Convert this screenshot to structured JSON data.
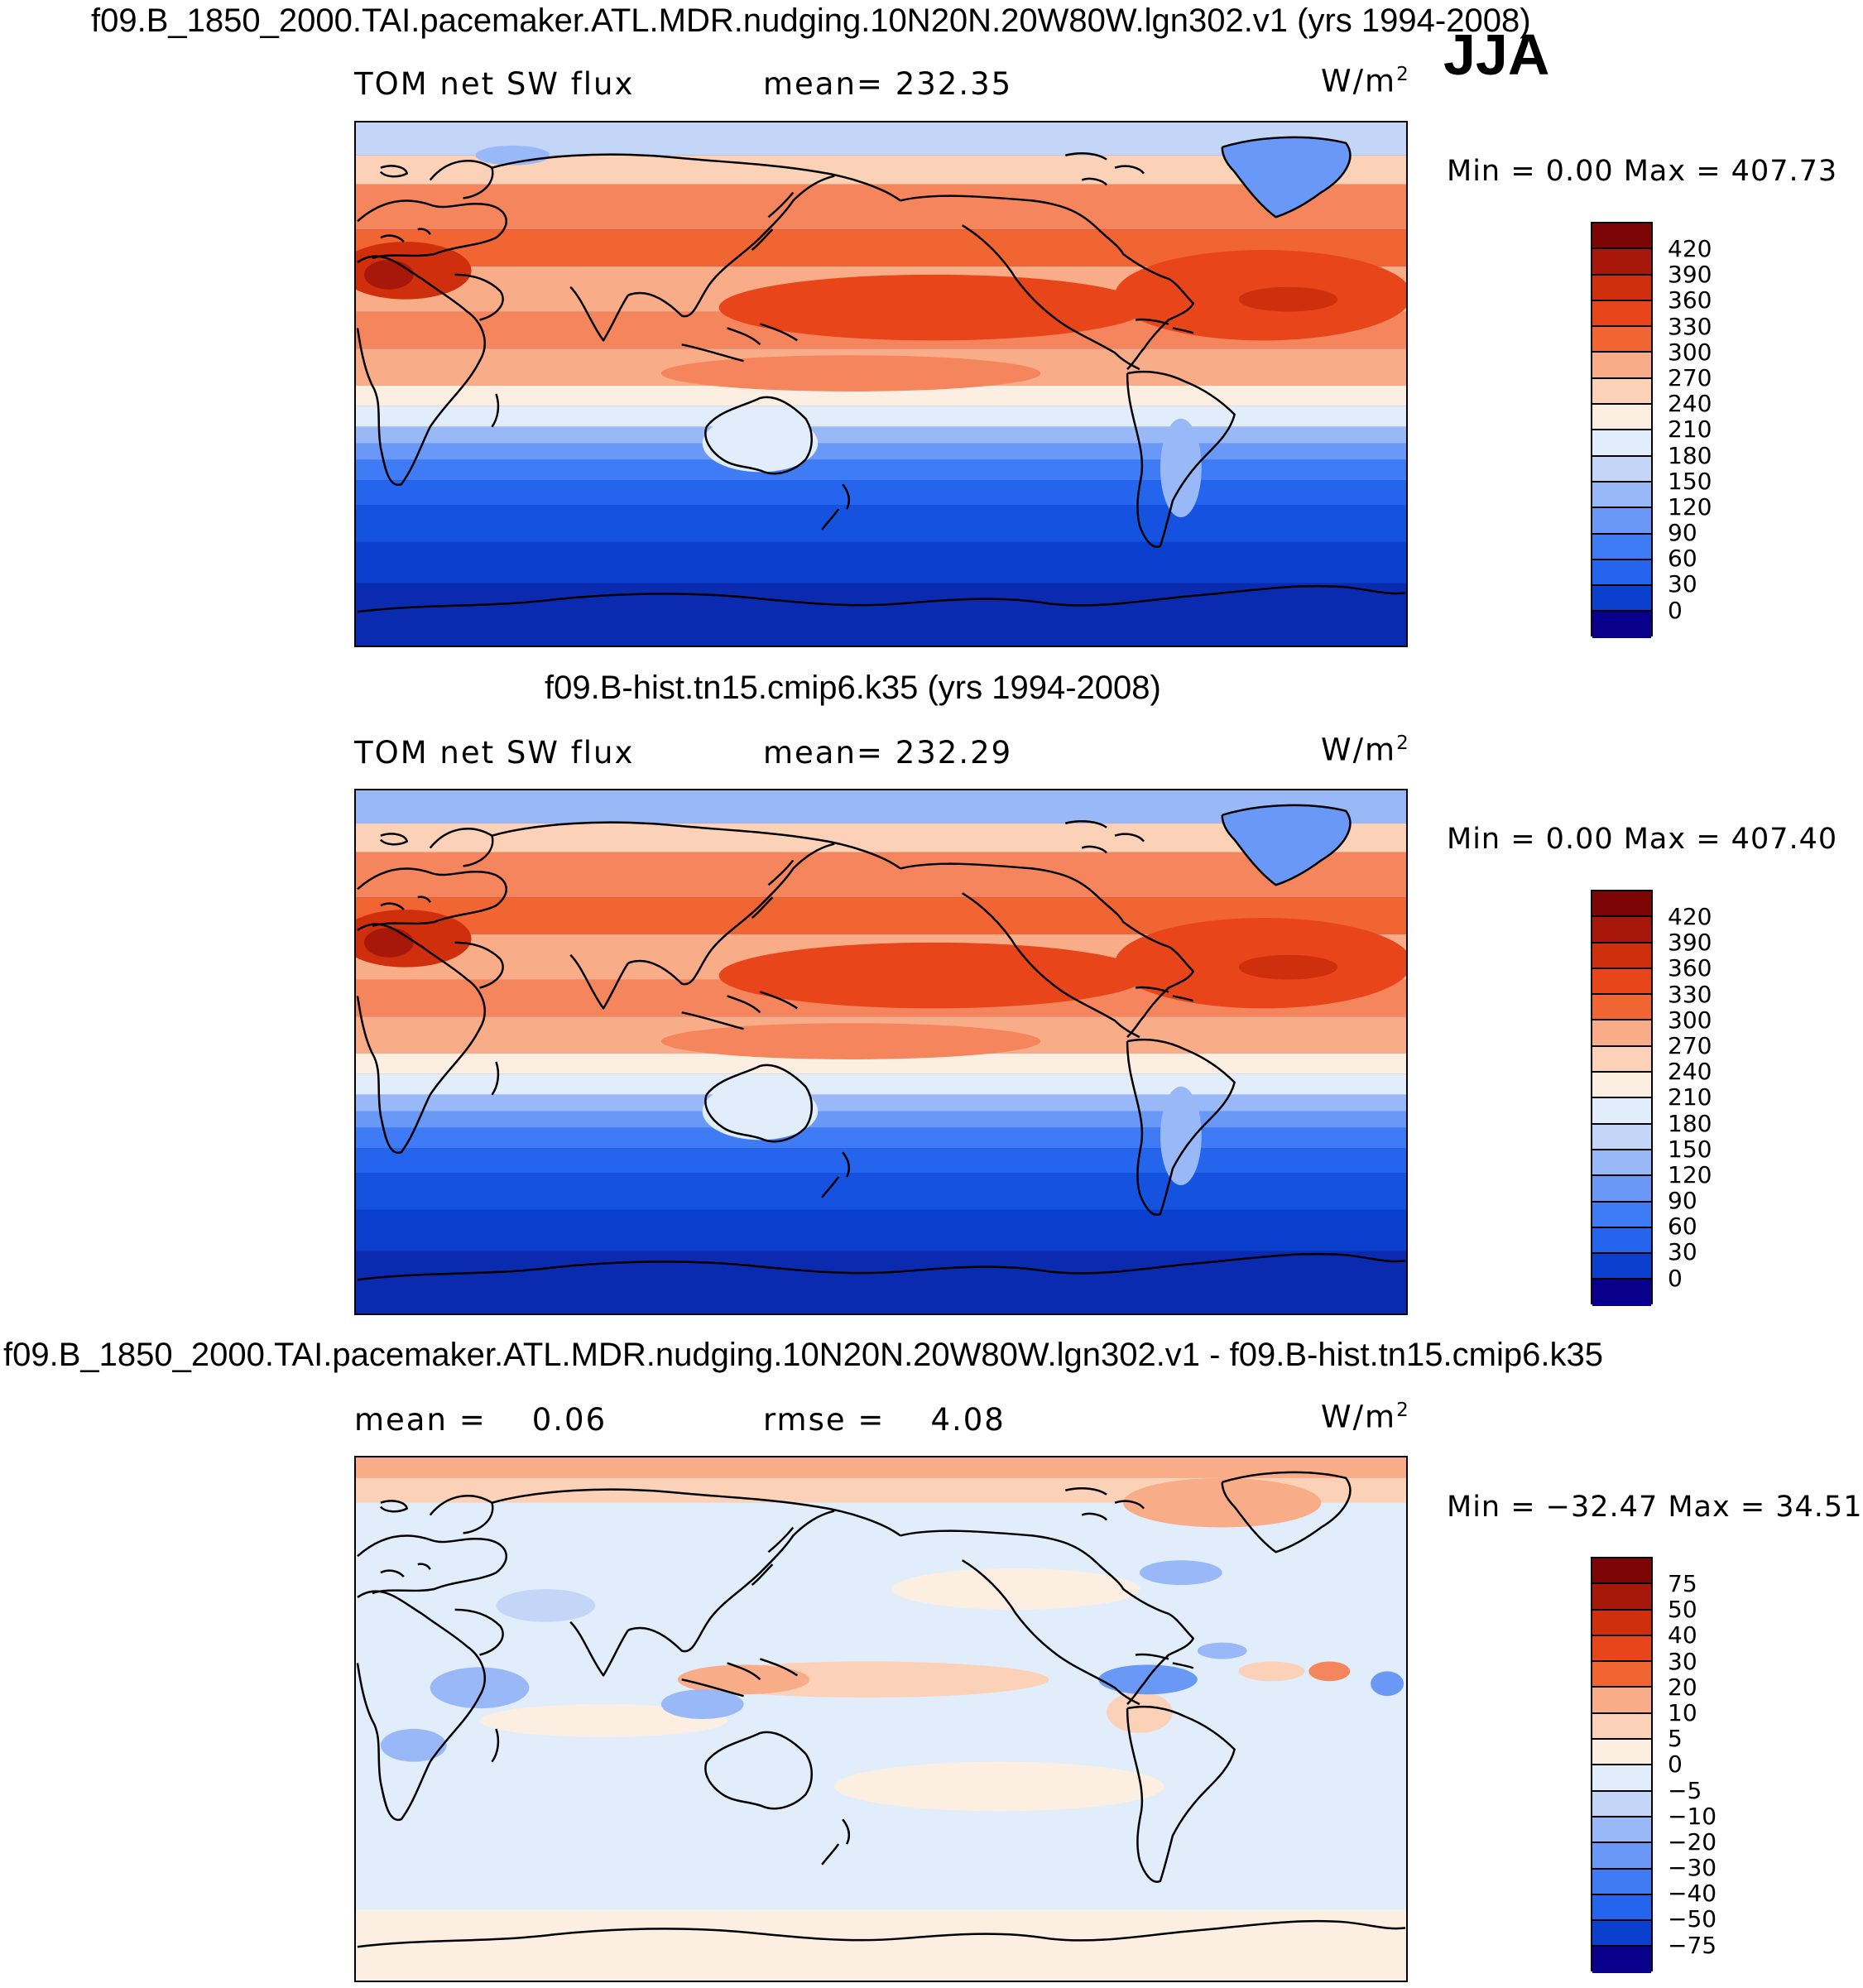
{
  "season": "JJA",
  "units": {
    "base": "W/m",
    "exp": "2"
  },
  "colors": {
    "abs_scale": [
      "#08008c",
      "#0a2bb0",
      "#0b3fcd",
      "#1552e0",
      "#2565ee",
      "#3f7bf4",
      "#6a98f6",
      "#99b8f7",
      "#c3d6f8",
      "#e2edfb",
      "#fdeee2",
      "#fbd1b8",
      "#f8ac88",
      "#f5855c",
      "#f16532",
      "#e8461a",
      "#d02f0d",
      "#a8180a",
      "#7d0505"
    ],
    "diff_scale": [
      "#08008c",
      "#0a2bb0",
      "#0b3fcd",
      "#1552e0",
      "#2565ee",
      "#3f7bf4",
      "#6a98f6",
      "#99b8f7",
      "#c3d6f8",
      "#e2edfb",
      "#fdeee2",
      "#fbd1b8",
      "#f8ac88",
      "#f5855c",
      "#f16532",
      "#e8461a",
      "#d02f0d",
      "#a8180a",
      "#7d0505"
    ]
  },
  "panels": [
    {
      "title": "f09.B_1850_2000.TAI.pacemaker.ATL.MDR.nudging.10N20N.20W80W.lgn302.v1 (yrs 1994-2008)",
      "left_label": "TOM net SW flux",
      "mean_text": "mean= 232.35",
      "minmax_text": "Min =    0.00  Max  =  407.73",
      "ticks": [
        "420",
        "390",
        "360",
        "330",
        "300",
        "270",
        "240",
        "210",
        "180",
        "150",
        "120",
        "90",
        "60",
        "30",
        "0"
      ]
    },
    {
      "title": "f09.B-hist.tn15.cmip6.k35 (yrs 1994-2008)",
      "left_label": "TOM net SW flux",
      "mean_text": "mean= 232.29",
      "minmax_text": "Min =    0.00  Max  =  407.40",
      "ticks": [
        "420",
        "390",
        "360",
        "330",
        "300",
        "270",
        "240",
        "210",
        "180",
        "150",
        "120",
        "90",
        "60",
        "30",
        "0"
      ]
    },
    {
      "title": "f09.B_1850_2000.TAI.pacemaker.ATL.MDR.nudging.10N20N.20W80W.lgn302.v1 - f09.B-hist.tn15.cmip6.k35",
      "left_label": "mean =    0.06",
      "mean_text": "rmse =    4.08",
      "minmax_text": "Min = −32.47  Max  =   34.51",
      "ticks": [
        "75",
        "50",
        "40",
        "30",
        "20",
        "10",
        "5",
        "0",
        "−5",
        "−10",
        "−20",
        "−30",
        "−40",
        "−50",
        "−75"
      ]
    }
  ]
}
